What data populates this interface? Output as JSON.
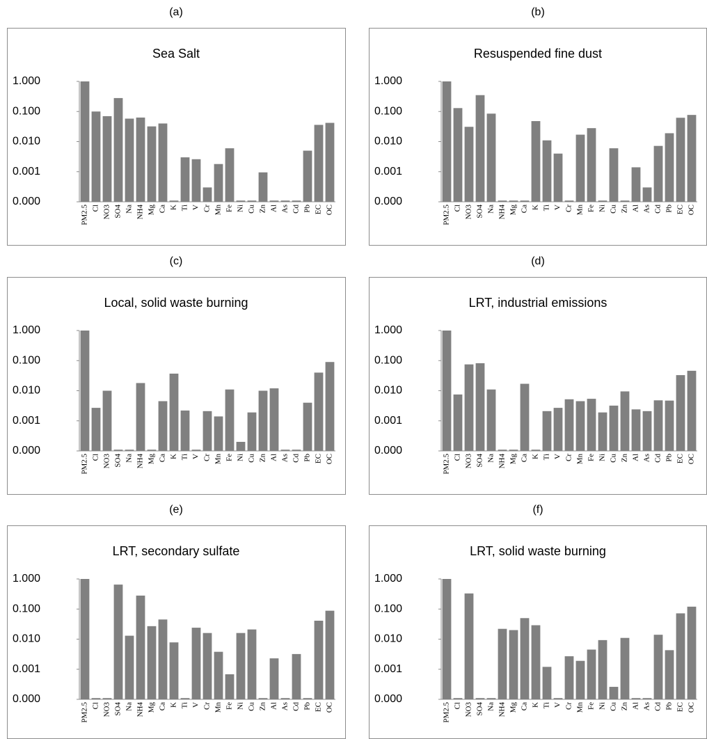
{
  "chart_data": [
    {
      "type": "bar",
      "panel_label": "(a)",
      "title": "Sea Salt",
      "log_scale": true,
      "color": "#808080",
      "categories": [
        "PM2.5",
        "Cl",
        "NO3",
        "SO4",
        "Na",
        "NH4",
        "Mg",
        "Ca",
        "K",
        "Ti",
        "V",
        "Cr",
        "Mn",
        "Fe",
        "Ni",
        "Cu",
        "Zn",
        "Al",
        "As",
        "Cd",
        "Pb",
        "EC",
        "OC"
      ],
      "values": [
        1.0,
        0.1,
        0.07,
        0.28,
        0.058,
        0.063,
        0.032,
        0.04,
        0.00011,
        0.003,
        0.0026,
        0.0003,
        0.0018,
        0.006,
        0.00011,
        0.00011,
        0.00095,
        0.00011,
        0.00011,
        0.00011,
        0.005,
        0.036,
        0.042
      ],
      "ylim": [
        0.0001,
        1
      ],
      "yticks": [
        {
          "value": 0.0001,
          "label": "0.000"
        },
        {
          "value": 0.001,
          "label": "0.001"
        },
        {
          "value": 0.01,
          "label": "0.010"
        },
        {
          "value": 0.1,
          "label": "0.100"
        },
        {
          "value": 1,
          "label": "1.000"
        }
      ]
    },
    {
      "type": "bar",
      "panel_label": "(b)",
      "title": "Resuspended fine dust",
      "log_scale": true,
      "color": "#808080",
      "categories": [
        "PM2.5",
        "Cl",
        "NO3",
        "SO4",
        "Na",
        "NH4",
        "Mg",
        "Ca",
        "K",
        "Ti",
        "V",
        "Cr",
        "Mn",
        "Fe",
        "Ni",
        "Cu",
        "Zn",
        "Al",
        "As",
        "Cd",
        "Pb",
        "EC",
        "OC"
      ],
      "values": [
        1.0,
        0.13,
        0.031,
        0.35,
        0.085,
        0.00011,
        0.00011,
        0.00011,
        0.048,
        0.011,
        0.004,
        0.00011,
        0.017,
        0.028,
        0.00011,
        0.006,
        0.00011,
        0.0014,
        0.0003,
        0.0072,
        0.019,
        0.062,
        0.077
      ],
      "ylim": [
        0.0001,
        1
      ],
      "yticks": [
        {
          "value": 0.0001,
          "label": "0.000"
        },
        {
          "value": 0.001,
          "label": "0.001"
        },
        {
          "value": 0.01,
          "label": "0.010"
        },
        {
          "value": 0.1,
          "label": "0.100"
        },
        {
          "value": 1,
          "label": "1.000"
        }
      ]
    },
    {
      "type": "bar",
      "panel_label": "(c)",
      "title": "Local, solid waste burning",
      "log_scale": true,
      "color": "#808080",
      "categories": [
        "PM2.5",
        "Cl",
        "NO3",
        "SO4",
        "Na",
        "NH4",
        "Mg",
        "Ca",
        "K",
        "Ti",
        "V",
        "Cr",
        "Mn",
        "Fe",
        "Ni",
        "Cu",
        "Zn",
        "Al",
        "As",
        "Cd",
        "Pb",
        "EC",
        "OC"
      ],
      "values": [
        1.0,
        0.0027,
        0.01,
        0.00011,
        0.00011,
        0.018,
        0.00011,
        0.0045,
        0.037,
        0.0022,
        0.00011,
        0.0021,
        0.0014,
        0.011,
        0.0002,
        0.0019,
        0.01,
        0.012,
        0.00011,
        0.00011,
        0.004,
        0.04,
        0.09
      ],
      "ylim": [
        0.0001,
        1
      ],
      "yticks": [
        {
          "value": 0.0001,
          "label": "0.000"
        },
        {
          "value": 0.001,
          "label": "0.001"
        },
        {
          "value": 0.01,
          "label": "0.010"
        },
        {
          "value": 0.1,
          "label": "0.100"
        },
        {
          "value": 1,
          "label": "1.000"
        }
      ]
    },
    {
      "type": "bar",
      "panel_label": "(d)",
      "title": "LRT, industrial emissions",
      "log_scale": true,
      "color": "#808080",
      "categories": [
        "PM2.5",
        "Cl",
        "NO3",
        "SO4",
        "Na",
        "NH4",
        "Mg",
        "Ca",
        "K",
        "Ti",
        "V",
        "Cr",
        "Mn",
        "Fe",
        "Ni",
        "Cu",
        "Zn",
        "Al",
        "As",
        "Cd",
        "Pb",
        "EC",
        "OC"
      ],
      "values": [
        1.0,
        0.0075,
        0.075,
        0.082,
        0.011,
        0.00011,
        0.00011,
        0.017,
        0.00011,
        0.0021,
        0.0027,
        0.0052,
        0.0045,
        0.0054,
        0.0019,
        0.0032,
        0.0095,
        0.0024,
        0.0021,
        0.0048,
        0.0047,
        0.033,
        0.046
      ],
      "ylim": [
        0.0001,
        1
      ],
      "yticks": [
        {
          "value": 0.0001,
          "label": "0.000"
        },
        {
          "value": 0.001,
          "label": "0.001"
        },
        {
          "value": 0.01,
          "label": "0.010"
        },
        {
          "value": 0.1,
          "label": "0.100"
        },
        {
          "value": 1,
          "label": "1.000"
        }
      ]
    },
    {
      "type": "bar",
      "panel_label": "(e)",
      "title": "LRT, secondary sulfate",
      "log_scale": true,
      "color": "#808080",
      "categories": [
        "PM2.5",
        "Cl",
        "NO3",
        "SO4",
        "Na",
        "NH4",
        "Mg",
        "Ca",
        "K",
        "Ti",
        "V",
        "Cr",
        "Mn",
        "Fe",
        "Ni",
        "Cu",
        "Zn",
        "Al",
        "As",
        "Cd",
        "Pb",
        "EC",
        "OC"
      ],
      "values": [
        1.0,
        0.00011,
        0.00011,
        0.65,
        0.013,
        0.28,
        0.027,
        0.045,
        0.0078,
        0.00011,
        0.024,
        0.016,
        0.0038,
        0.00068,
        0.016,
        0.021,
        0.00011,
        0.0023,
        0.00011,
        0.0032,
        0.00011,
        0.041,
        0.088
      ],
      "ylim": [
        0.0001,
        1
      ],
      "yticks": [
        {
          "value": 0.0001,
          "label": "0.000"
        },
        {
          "value": 0.001,
          "label": "0.001"
        },
        {
          "value": 0.01,
          "label": "0.010"
        },
        {
          "value": 0.1,
          "label": "0.100"
        },
        {
          "value": 1,
          "label": "1.000"
        }
      ]
    },
    {
      "type": "bar",
      "panel_label": "(f)",
      "title": "LRT, solid waste burning",
      "log_scale": true,
      "color": "#808080",
      "categories": [
        "PM2.5",
        "Cl",
        "NO3",
        "SO4",
        "Na",
        "NH4",
        "Mg",
        "Ca",
        "K",
        "Ti",
        "V",
        "Cr",
        "Mn",
        "Fe",
        "Ni",
        "Cu",
        "Zn",
        "Al",
        "As",
        "Cd",
        "Pb",
        "EC",
        "OC"
      ],
      "values": [
        1.0,
        0.00011,
        0.33,
        0.00011,
        0.00011,
        0.022,
        0.02,
        0.05,
        0.029,
        0.0012,
        0.00011,
        0.0027,
        0.0019,
        0.0045,
        0.0093,
        0.00026,
        0.011,
        0.00011,
        0.00011,
        0.014,
        0.0043,
        0.072,
        0.12
      ],
      "ylim": [
        0.0001,
        1
      ],
      "yticks": [
        {
          "value": 0.0001,
          "label": "0.000"
        },
        {
          "value": 0.001,
          "label": "0.001"
        },
        {
          "value": 0.01,
          "label": "0.010"
        },
        {
          "value": 0.1,
          "label": "0.100"
        },
        {
          "value": 1,
          "label": "1.000"
        }
      ]
    }
  ]
}
